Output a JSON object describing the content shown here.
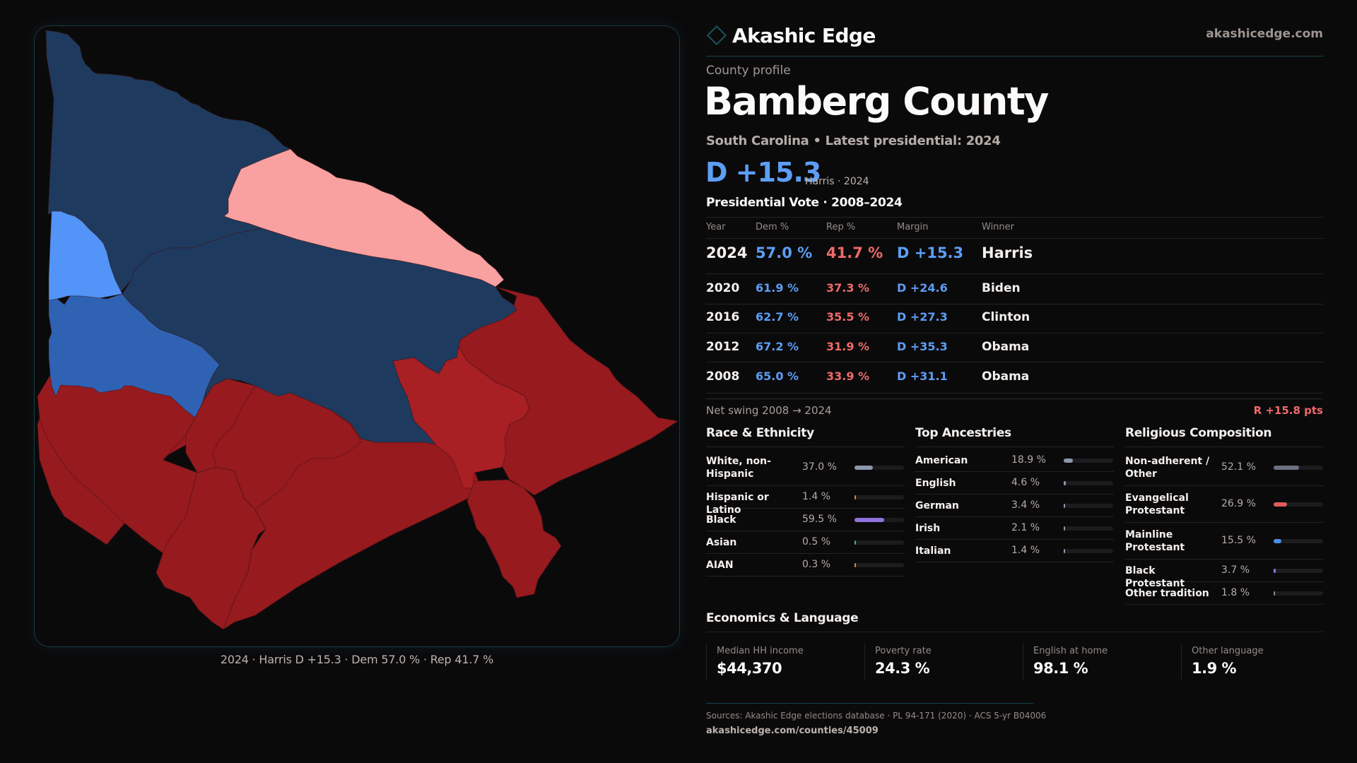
{
  "brand": {
    "name": "Akashic Edge",
    "site": "akashicedge.com",
    "logo_icon": "diamond-outline-icon",
    "accent": "#1a5560"
  },
  "profile": {
    "eyebrow": "County profile",
    "title": "Bamberg County",
    "subtitle": "South Carolina • Latest presidential: 2024",
    "headline_margin": "D +15.3",
    "headline_note": "Harris · 2024"
  },
  "map": {
    "caption": "2024 · Harris D +15.3 · Dem 57.0 % · Rep 41.7 %",
    "colors": {
      "d_strong": "#1f3a5f",
      "d_mid": "#2f62b3",
      "d_light": "#5294f7",
      "r_light": "#f9a0a0",
      "r_mid": "#a81f24",
      "r_strong": "#961a1e"
    }
  },
  "vote_table": {
    "heading": "Presidential Vote · 2008–2024",
    "columns": [
      "Year",
      "Dem %",
      "Rep %",
      "Margin",
      "Winner"
    ],
    "rows": [
      {
        "year": "2024",
        "dem": "57.0 %",
        "rep": "41.7 %",
        "margin": "D +15.3",
        "winner": "Harris"
      },
      {
        "year": "2020",
        "dem": "61.9 %",
        "rep": "37.3 %",
        "margin": "D +24.6",
        "winner": "Biden"
      },
      {
        "year": "2016",
        "dem": "62.7 %",
        "rep": "35.5 %",
        "margin": "D +27.3",
        "winner": "Clinton"
      },
      {
        "year": "2012",
        "dem": "67.2 %",
        "rep": "31.9 %",
        "margin": "D +35.3",
        "winner": "Obama"
      },
      {
        "year": "2008",
        "dem": "65.0 %",
        "rep": "33.9 %",
        "margin": "D +31.1",
        "winner": "Obama"
      }
    ],
    "swing_label": "Net swing 2008 → 2024",
    "swing_value": "R +15.8 pts"
  },
  "race": {
    "title": "Race & Ethnicity",
    "items": [
      {
        "label": "White, non-Hispanic",
        "value": "37.0 %",
        "pct": 37.0,
        "color": "#8b96aa"
      },
      {
        "label": "Hispanic or Latino",
        "value": "1.4 %",
        "pct": 1.4,
        "color": "#d98a2b"
      },
      {
        "label": "Black",
        "value": "59.5 %",
        "pct": 59.5,
        "color": "#8f72dc"
      },
      {
        "label": "Asian",
        "value": "0.5 %",
        "pct": 0.5,
        "color": "#2fb38a"
      },
      {
        "label": "AIAN",
        "value": "0.3 %",
        "pct": 0.3,
        "color": "#d98a2b"
      }
    ]
  },
  "ancestry": {
    "title": "Top Ancestries",
    "items": [
      {
        "label": "American",
        "value": "18.9 %",
        "pct": 18.9,
        "color": "#8b96aa"
      },
      {
        "label": "English",
        "value": "4.6 %",
        "pct": 4.6,
        "color": "#8b96aa"
      },
      {
        "label": "German",
        "value": "3.4 %",
        "pct": 3.4,
        "color": "#8b96aa"
      },
      {
        "label": "Irish",
        "value": "2.1 %",
        "pct": 2.1,
        "color": "#8b96aa"
      },
      {
        "label": "Italian",
        "value": "1.4 %",
        "pct": 1.4,
        "color": "#8b96aa"
      }
    ]
  },
  "religion": {
    "title": "Religious Composition",
    "items": [
      {
        "label": "Non-adherent / Other",
        "value": "52.1 %",
        "pct": 52.1,
        "color": "#6b7180"
      },
      {
        "label": "Evangelical Protestant",
        "value": "26.9 %",
        "pct": 26.9,
        "color": "#e05a5a"
      },
      {
        "label": "Mainline Protestant",
        "value": "15.5 %",
        "pct": 15.5,
        "color": "#4a8fe8"
      },
      {
        "label": "Black Protestant",
        "value": "3.7 %",
        "pct": 3.7,
        "color": "#8f72dc"
      },
      {
        "label": "Other tradition",
        "value": "1.8 %",
        "pct": 1.8,
        "color": "#8b8b8b"
      }
    ]
  },
  "economics": {
    "title": "Economics & Language",
    "cards": [
      {
        "label": "Median HH income",
        "value": "$44,370"
      },
      {
        "label": "Poverty rate",
        "value": "24.3 %"
      },
      {
        "label": "English at home",
        "value": "98.1 %"
      },
      {
        "label": "Other language",
        "value": "1.9 %"
      }
    ]
  },
  "footer": {
    "sources": "Sources: Akashic Edge elections database · PL 94-171 (2020) · ACS 5-yr B04006",
    "url": "akashicedge.com/counties/45009"
  }
}
